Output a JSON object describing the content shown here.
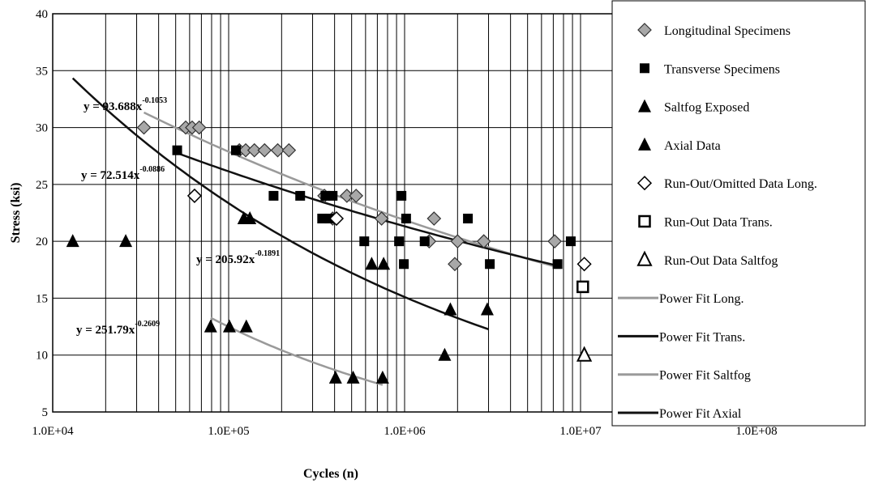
{
  "chart_data": {
    "type": "scatter",
    "title": "",
    "xlabel": "Cycles (n)",
    "ylabel": "Stress (ksi)",
    "x_scale": "log",
    "xlim": [
      10000,
      500000000
    ],
    "ylim": [
      5,
      40
    ],
    "x_ticks": [
      "1.0E+04",
      "1.0E+05",
      "1.0E+06",
      "1.0E+07",
      "1.0E+08"
    ],
    "y_ticks": [
      "5",
      "10",
      "15",
      "20",
      "25",
      "30",
      "35",
      "40"
    ],
    "grid": true,
    "legend_position": "right",
    "series": [
      {
        "name": "Longitudinal Specimens",
        "marker": "diamond-gray",
        "points": [
          [
            33000,
            30
          ],
          [
            57000,
            30
          ],
          [
            62000,
            30
          ],
          [
            68000,
            30
          ],
          [
            115000,
            28
          ],
          [
            125000,
            28
          ],
          [
            140000,
            28
          ],
          [
            160000,
            28
          ],
          [
            190000,
            28
          ],
          [
            220000,
            28
          ],
          [
            350000,
            24
          ],
          [
            390000,
            22
          ],
          [
            470000,
            24
          ],
          [
            530000,
            24
          ],
          [
            740000,
            22
          ],
          [
            1380000,
            20
          ],
          [
            1470000,
            22
          ],
          [
            1930000,
            18
          ],
          [
            2000000,
            20
          ],
          [
            2820000,
            20
          ],
          [
            7130000,
            20
          ]
        ]
      },
      {
        "name": "Transverse Specimens",
        "marker": "square-filled",
        "points": [
          [
            51000,
            28
          ],
          [
            110000,
            28
          ],
          [
            180000,
            24
          ],
          [
            255000,
            24
          ],
          [
            340000,
            22
          ],
          [
            355000,
            24
          ],
          [
            375000,
            22
          ],
          [
            390000,
            24
          ],
          [
            590000,
            20
          ],
          [
            930000,
            20
          ],
          [
            960000,
            24
          ],
          [
            990000,
            18
          ],
          [
            1020000,
            22
          ],
          [
            1300000,
            20
          ],
          [
            2290000,
            22
          ],
          [
            3050000,
            18
          ],
          [
            7400000,
            18
          ],
          [
            8800000,
            20
          ]
        ]
      },
      {
        "name": "Saltfog Exposed",
        "marker": "triangle-filled",
        "points": [
          [
            122000,
            22
          ],
          [
            132000,
            22
          ],
          [
            650000,
            18
          ],
          [
            760000,
            18
          ],
          [
            1820000,
            14
          ],
          [
            1690000,
            10
          ],
          [
            2950000,
            14
          ]
        ]
      },
      {
        "name": "Axial Data",
        "marker": "triangle-filled",
        "points": [
          [
            13000,
            20
          ],
          [
            26000,
            20
          ],
          [
            79000,
            12.5
          ],
          [
            101000,
            12.5
          ],
          [
            126000,
            12.5
          ],
          [
            405000,
            8
          ],
          [
            510000,
            8
          ],
          [
            750000,
            8
          ]
        ]
      },
      {
        "name": "Run-Out/Omitted Data Long.",
        "marker": "diamond-open",
        "points": [
          [
            64000,
            24
          ],
          [
            410000,
            22
          ],
          [
            10500000,
            18
          ]
        ]
      },
      {
        "name": "Run-Out Data Trans.",
        "marker": "square-open",
        "points": [
          [
            10300000,
            16
          ]
        ]
      },
      {
        "name": "Run-Out Data Saltfog",
        "marker": "triangle-open",
        "points": [
          [
            10500000,
            10
          ]
        ]
      }
    ],
    "fits": [
      {
        "name": "Power Fit Long.",
        "a": 93.688,
        "b": -0.1053,
        "coef": "93.688",
        "exp": "-0.1053",
        "x_range": [
          33000,
          7500000
        ],
        "color": "#9a9a9a"
      },
      {
        "name": "Power Fit Trans.",
        "a": 72.514,
        "b": -0.0886,
        "coef": "72.514",
        "exp": "-0.0886",
        "x_range": [
          51000,
          7500000
        ],
        "color": "#111111"
      },
      {
        "name": "Power Fit Saltfog",
        "a": 251.79,
        "b": -0.2609,
        "coef": "251.79",
        "exp": "-0.2609",
        "x_range": [
          79000,
          750000
        ],
        "color": "#9a9a9a"
      },
      {
        "name": "Power Fit Axial",
        "a": 205.92,
        "b": -0.1891,
        "coef": "205.92",
        "exp": "-0.1891",
        "x_range": [
          13000,
          3000000
        ],
        "color": "#111111"
      }
    ],
    "legend_entries": [
      {
        "label": "Longitudinal Specimens",
        "marker": "diamond-gray"
      },
      {
        "label": "Transverse Specimens",
        "marker": "square-filled"
      },
      {
        "label": "Saltfog Exposed",
        "marker": "triangle-filled"
      },
      {
        "label": "Axial Data",
        "marker": "triangle-filled"
      },
      {
        "label": "Run-Out/Omitted Data Long.",
        "marker": "diamond-open"
      },
      {
        "label": "Run-Out Data Trans.",
        "marker": "square-open"
      },
      {
        "label": "Run-Out Data Saltfog",
        "marker": "triangle-open"
      },
      {
        "label": "Power Fit Long.",
        "marker": "line",
        "color": "#9a9a9a"
      },
      {
        "label": "Power Fit Trans.",
        "marker": "line",
        "color": "#111111"
      },
      {
        "label": "Power Fit Saltfog",
        "marker": "line",
        "color": "#9a9a9a"
      },
      {
        "label": "Power Fit Axial",
        "marker": "line",
        "color": "#111111"
      }
    ]
  }
}
